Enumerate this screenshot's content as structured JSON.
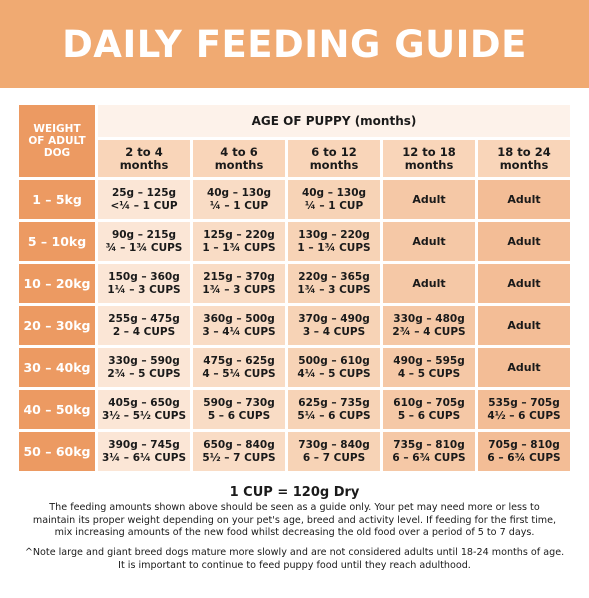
{
  "title": "DAILY FEEDING GUIDE",
  "table": {
    "weight_header": [
      "WEIGHT",
      "OF ADULT",
      "DOG"
    ],
    "age_header": "AGE OF PUPPY (months)",
    "age_columns": [
      [
        "2 to 4",
        "months"
      ],
      [
        "4 to 6",
        "months"
      ],
      [
        "6 to 12",
        "months"
      ],
      [
        "12 to 18",
        "months"
      ],
      [
        "18 to 24",
        "months"
      ]
    ],
    "rows": [
      {
        "weight": "1 – 5kg",
        "cells": [
          [
            "25g – 125g",
            "<¼ – 1 CUP"
          ],
          [
            "40g – 130g",
            "¼ – 1 CUP"
          ],
          [
            "40g – 130g",
            "¼ – 1 CUP"
          ],
          [
            "Adult"
          ],
          [
            "Adult"
          ]
        ]
      },
      {
        "weight": "5 – 10kg",
        "cells": [
          [
            "90g – 215g",
            "¾ – 1¾ CUPS"
          ],
          [
            "125g – 220g",
            "1 – 1¾ CUPS"
          ],
          [
            "130g – 220g",
            "1 – 1¾ CUPS"
          ],
          [
            "Adult"
          ],
          [
            "Adult"
          ]
        ]
      },
      {
        "weight": "10 – 20kg",
        "cells": [
          [
            "150g – 360g",
            "1¼ – 3 CUPS"
          ],
          [
            "215g – 370g",
            "1¾ – 3 CUPS"
          ],
          [
            "220g – 365g",
            "1¾ – 3 CUPS"
          ],
          [
            "Adult"
          ],
          [
            "Adult"
          ]
        ]
      },
      {
        "weight": "20 – 30kg",
        "cells": [
          [
            "255g – 475g",
            "2 – 4 CUPS"
          ],
          [
            "360g – 500g",
            "3 – 4¼ CUPS"
          ],
          [
            "370g – 490g",
            "3 – 4 CUPS"
          ],
          [
            "330g – 480g",
            "2¾ – 4 CUPS"
          ],
          [
            "Adult"
          ]
        ]
      },
      {
        "weight": "30 – 40kg",
        "cells": [
          [
            "330g – 590g",
            "2¾ – 5 CUPS"
          ],
          [
            "475g – 625g",
            "4 – 5¼ CUPS"
          ],
          [
            "500g – 610g",
            "4¼ – 5 CUPS"
          ],
          [
            "490g – 595g",
            "4 – 5 CUPS"
          ],
          [
            "Adult"
          ]
        ]
      },
      {
        "weight": "40 – 50kg",
        "cells": [
          [
            "405g – 650g",
            "3½ – 5½ CUPS"
          ],
          [
            "590g – 730g",
            "5 – 6 CUPS"
          ],
          [
            "625g – 735g",
            "5¼ – 6 CUPS"
          ],
          [
            "610g – 705g",
            "5 – 6 CUPS"
          ],
          [
            "535g – 705g",
            "4½ – 6 CUPS"
          ]
        ]
      },
      {
        "weight": "50 – 60kg",
        "cells": [
          [
            "390g – 745g",
            "3¼ – 6¼ CUPS"
          ],
          [
            "650g – 840g",
            "5½ – 7 CUPS"
          ],
          [
            "730g – 840g",
            "6 – 7 CUPS"
          ],
          [
            "735g – 810g",
            "6 – 6¾ CUPS"
          ],
          [
            "705g – 810g",
            "6 – 6¾ CUPS"
          ]
        ]
      }
    ]
  },
  "cup_note": "1 CUP = 120g Dry",
  "disclaimer": [
    "The feeding amounts shown above should be seen as a guide only. Your pet may need more or less to",
    "maintain its proper weight depending on your pet's age, breed and activity level. If feeding for the first time,",
    "mix increasing amounts of the new food whilst decreasing the old food over a period of 5 to 7 days."
  ],
  "footnote": [
    "^Note large and giant breed dogs mature more slowly and are not considered adults until 18-24 months of age.",
    "It is important to continue to feed puppy food until they reach adulthood."
  ],
  "colors": {
    "banner": "#f0aa72",
    "weight_cells": "#ec9a62"
  }
}
